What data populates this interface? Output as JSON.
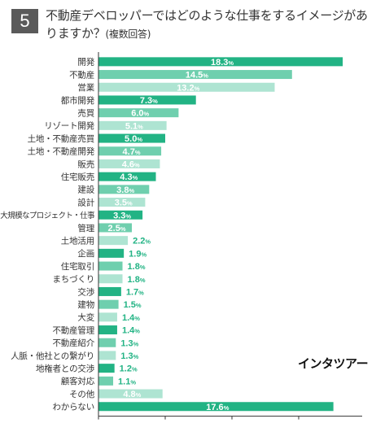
{
  "question": {
    "number": "5",
    "text": "不動産デベロッパーではどのような仕事をするイメージがありますか？",
    "note": "(複数回答)"
  },
  "brand": {
    "logo_text": "インタツアー"
  },
  "chart_data": {
    "type": "bar",
    "orientation": "horizontal",
    "categories": [
      "開発",
      "不動産",
      "営業",
      "都市開発",
      "売買",
      "リゾート開発",
      "土地・不動産売買",
      "土地・不動産開発",
      "販売",
      "住宅販売",
      "建設",
      "設計",
      "大規模なプロジェクト・仕事",
      "管理",
      "土地活用",
      "企画",
      "住宅取引",
      "まちづくり",
      "交渉",
      "建物",
      "大変",
      "不動産管理",
      "不動産紹介",
      "人脈・他社との繋がり",
      "地権者との交渉",
      "顧客対応",
      "その他",
      "わからない"
    ],
    "values": [
      18.3,
      14.5,
      13.2,
      7.3,
      6.0,
      5.1,
      5.0,
      4.7,
      4.6,
      4.3,
      3.8,
      3.5,
      3.3,
      2.5,
      2.2,
      1.9,
      1.8,
      1.8,
      1.7,
      1.5,
      1.4,
      1.4,
      1.3,
      1.3,
      1.2,
      1.1,
      4.8,
      17.6
    ],
    "value_labels": [
      "18.3",
      "14.5",
      "13.2",
      "7.3",
      "6.0",
      "5.1",
      "5.0",
      "4.7",
      "4.6",
      "4.3",
      "3.8",
      "3.5",
      "3.3",
      "2.5",
      "2.2",
      "1.9",
      "1.8",
      "1.8",
      "1.7",
      "1.5",
      "1.4",
      "1.4",
      "1.3",
      "1.3",
      "1.2",
      "1.1",
      "4.8",
      "17.6"
    ],
    "value_unit": "%",
    "shades": [
      "dark",
      "mid",
      "light",
      "dark",
      "mid",
      "light",
      "dark",
      "mid",
      "light",
      "dark",
      "mid",
      "light",
      "dark",
      "mid",
      "light",
      "dark",
      "mid",
      "light",
      "dark",
      "mid",
      "light",
      "dark",
      "mid",
      "light",
      "dark",
      "mid",
      "light",
      "dark"
    ],
    "colors": {
      "dark": "#22b384",
      "mid": "#6fcfae",
      "light": "#aee4d2",
      "label_outside": "#22b384",
      "axis": "#333333"
    },
    "xlim": [
      0,
      19
    ],
    "xticks": [
      0,
      5,
      10,
      15
    ],
    "xtick_labels": [
      "0",
      "5",
      "10",
      "15"
    ],
    "x_unit": "(%)",
    "grid": false
  }
}
